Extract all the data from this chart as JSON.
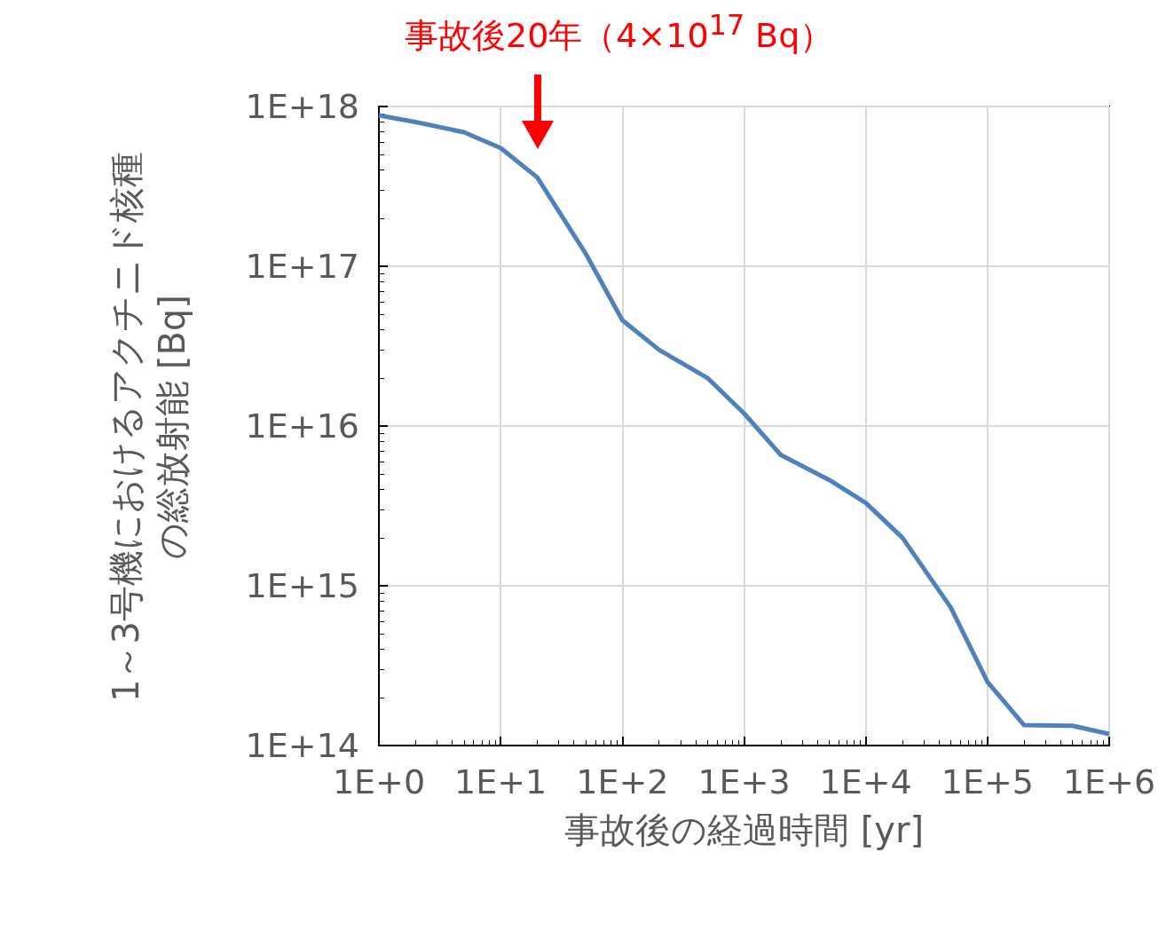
{
  "chart_data": {
    "type": "line",
    "xlabel": "事故後の経過時間 [yr]",
    "ylabel": "1～3号機におけるアクチニド核種の総放射能 [Bq]",
    "log": "xy",
    "grid": true,
    "marker": "none",
    "line_style": "solid",
    "xlim": [
      1,
      1000000
    ],
    "xticks": [
      {
        "value": 1,
        "label": "1E+0"
      },
      {
        "value": 10,
        "label": "1E+1"
      },
      {
        "value": 100,
        "label": "1E+2"
      },
      {
        "value": 1000,
        "label": "1E+3"
      },
      {
        "value": 10000,
        "label": "1E+4"
      },
      {
        "value": 100000,
        "label": "1E+5"
      },
      {
        "value": 1000000,
        "label": "1E+6"
      }
    ],
    "ylim": [
      100000000000000.0,
      1e+18
    ],
    "yticks": [
      {
        "value": 100000000000000.0,
        "label": "1E+14"
      },
      {
        "value": 1000000000000000.0,
        "label": "1E+15"
      },
      {
        "value": 1e+16,
        "label": "1E+16"
      },
      {
        "value": 1e+17,
        "label": "1E+17"
      },
      {
        "value": 1e+18,
        "label": "1E+18"
      }
    ],
    "x": [
      1,
      2,
      5,
      10,
      20,
      50,
      100,
      200,
      500,
      1000,
      2000,
      5000,
      10000,
      20000,
      50000,
      100000,
      200000,
      500000,
      1000000
    ],
    "series": [
      {
        "color": "#4f81bd",
        "values": [
          8.8e+17,
          8e+17,
          6.9e+17,
          5.5e+17,
          3.6e+17,
          1.2e+17,
          4.6e+16,
          3e+16,
          2e+16,
          1.2e+16,
          6600000000000000.0,
          4600000000000000.0,
          3300000000000000.0,
          2000000000000000.0,
          730000000000000.0,
          250000000000000.0,
          134000000000000.0,
          133000000000000.0,
          118000000000000.0
        ]
      }
    ],
    "annotations": [
      "事故後20年（4×10$^{17}$ Bq）"
    ]
  }
}
